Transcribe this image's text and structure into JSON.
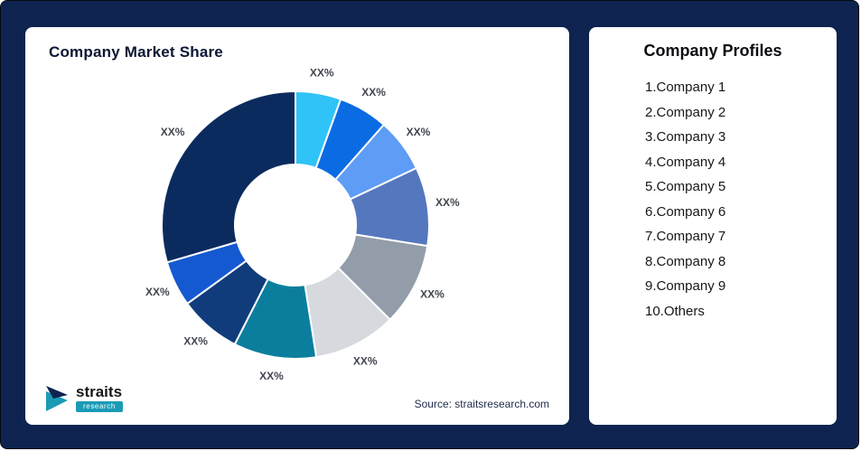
{
  "left_card": {
    "title": "Company Market Share",
    "source": "Source: straitsresearch.com"
  },
  "logo": {
    "brand": "straits",
    "sub": "research"
  },
  "right_card": {
    "title": "Company Profiles",
    "items": [
      "1.Company 1",
      "2.Company 2",
      "3.Company 3",
      "4.Company 4",
      "5.Company 5",
      "6.Company 6",
      "7.Company 7",
      "8.Company 8",
      "9.Company 9",
      "10.Others"
    ]
  },
  "chart_data": {
    "type": "pie",
    "subtype": "donut",
    "title": "Company Market Share",
    "categories": [
      "Company 1",
      "Company 2",
      "Company 3",
      "Company 4",
      "Company 5",
      "Company 6",
      "Company 7",
      "Company 8",
      "Company 9",
      "Others"
    ],
    "values": [
      5.5,
      6,
      6.5,
      9.5,
      10,
      10,
      10,
      7.5,
      5.5,
      29.5
    ],
    "labels": [
      "XX%",
      "XX%",
      "XX%",
      "XX%",
      "XX%",
      "XX%",
      "XX%",
      "XX%",
      "XX%",
      "XX%"
    ],
    "colors": [
      "#2fc3f7",
      "#0b6be3",
      "#5e9cf5",
      "#5577be",
      "#939ca9",
      "#d6dade",
      "#0b7e9e",
      "#113c7c",
      "#1559d1",
      "#0b2b5e"
    ],
    "start_angle_deg": 0,
    "inner_radius_ratio": 0.45,
    "legend": "none",
    "label_position": "outside"
  },
  "theme": {
    "background": "#0e2350",
    "card_bg": "#ffffff",
    "title_color": "#0b1533",
    "segment_label_color": "#41464f",
    "badge_color": "#1a9bb5"
  }
}
